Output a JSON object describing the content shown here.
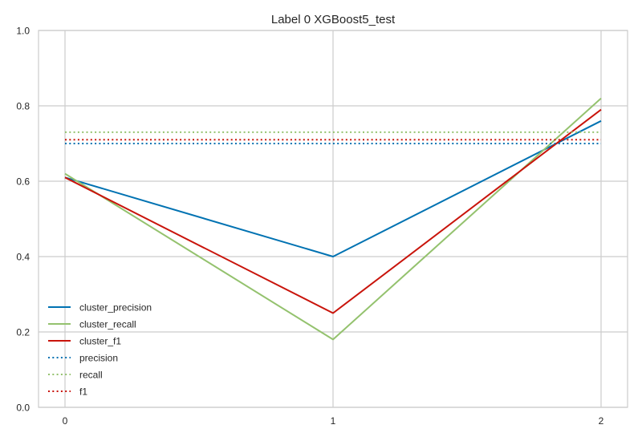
{
  "chart_data": {
    "type": "line",
    "title": "Label 0 XGBoost5_test",
    "xlabel": "",
    "ylabel": "",
    "x": [
      0,
      1,
      2
    ],
    "x_ticks": [
      "0",
      "1",
      "2"
    ],
    "y_ticks": [
      "0.0",
      "0.2",
      "0.4",
      "0.6",
      "0.8",
      "1.0"
    ],
    "ylim": [
      0,
      1
    ],
    "grid": true,
    "legend_position": "lower-left",
    "series": [
      {
        "name": "cluster_precision",
        "values": [
          0.61,
          0.4,
          0.76
        ],
        "style": "solid",
        "color": "#0072b2"
      },
      {
        "name": "cluster_recall",
        "values": [
          0.62,
          0.18,
          0.82
        ],
        "style": "solid",
        "color": "#94c26e"
      },
      {
        "name": "cluster_f1",
        "values": [
          0.61,
          0.25,
          0.79
        ],
        "style": "solid",
        "color": "#c9140b"
      },
      {
        "name": "precision",
        "values": [
          0.7,
          0.7,
          0.7
        ],
        "style": "dotted",
        "color": "#0072b2"
      },
      {
        "name": "recall",
        "values": [
          0.73,
          0.73,
          0.73
        ],
        "style": "dotted",
        "color": "#94c26e"
      },
      {
        "name": "f1",
        "values": [
          0.71,
          0.71,
          0.71
        ],
        "style": "dotted",
        "color": "#c9140b"
      }
    ]
  }
}
